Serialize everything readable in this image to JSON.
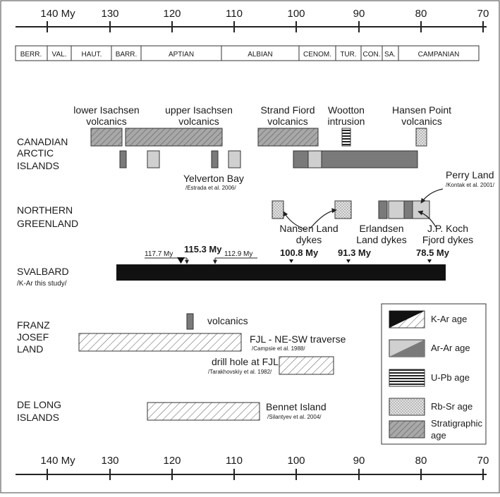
{
  "axis": {
    "ticks": [
      "140 My",
      "130",
      "120",
      "110",
      "100",
      "90",
      "80",
      "70"
    ]
  },
  "stages": [
    "BERR.",
    "VAL.",
    "HAUT.",
    "BARR.",
    "APTIAN",
    "ALBIAN",
    "CENOM.",
    "TUR.",
    "CON.",
    "SA.",
    "CAMPANIAN"
  ],
  "regions": {
    "canadian": [
      "CANADIAN",
      "ARCTIC",
      "ISLANDS"
    ],
    "greenland": [
      "NORTHERN",
      "GREENLAND"
    ],
    "svalbard": [
      "SVALBARD",
      "/K-Ar this study/"
    ],
    "franz": [
      "FRANZ",
      "JOSEF",
      "LAND"
    ],
    "delong": [
      "DE  LONG",
      "ISLANDS"
    ]
  },
  "labels": {
    "lower_isachsen": [
      "lower Isachsen",
      "volcanics"
    ],
    "upper_isachsen": [
      "upper Isachsen",
      "volcanics"
    ],
    "strand_fiord": [
      "Strand Fiord",
      "volcanics"
    ],
    "wootton": [
      "Wootton",
      "intrusion"
    ],
    "hansen_point": [
      "Hansen Point",
      "volcanics"
    ],
    "yelverton": "Yelverton Bay",
    "yelverton_ref": "/Estrada et al. 2006/",
    "perry": "Perry Land",
    "perry_ref": "/Kontak et al. 2001/",
    "nansen": [
      "Nansen Land",
      "dykes"
    ],
    "erlandsen": [
      "Erlandsen",
      "Land dykes"
    ],
    "jpkoch": [
      "J.P. Koch",
      "Fjord dykes"
    ],
    "fjl_volcanics": "volcanics",
    "fjl_traverse": "FJL - NE-SW traverse",
    "fjl_traverse_ref": "/Campsie et al. 1988/",
    "drill": "drill hole at FJL",
    "drill_ref": "/Tarakhovskiy et al. 1982/",
    "bennet": "Bennet Island",
    "bennet_ref": "/Silantyev et al.  2004/"
  },
  "svalbard_ages": {
    "a1": "117.7 My",
    "a2": "115.3 My",
    "a3": "112.9 My",
    "a4": "100.8 My",
    "a5": "91.3 My",
    "a6": "78.5 My"
  },
  "legend": [
    "K-Ar age",
    "Ar-Ar age",
    "U-Pb age",
    "Rb-Sr age",
    "Stratigraphic",
    "age"
  ]
}
